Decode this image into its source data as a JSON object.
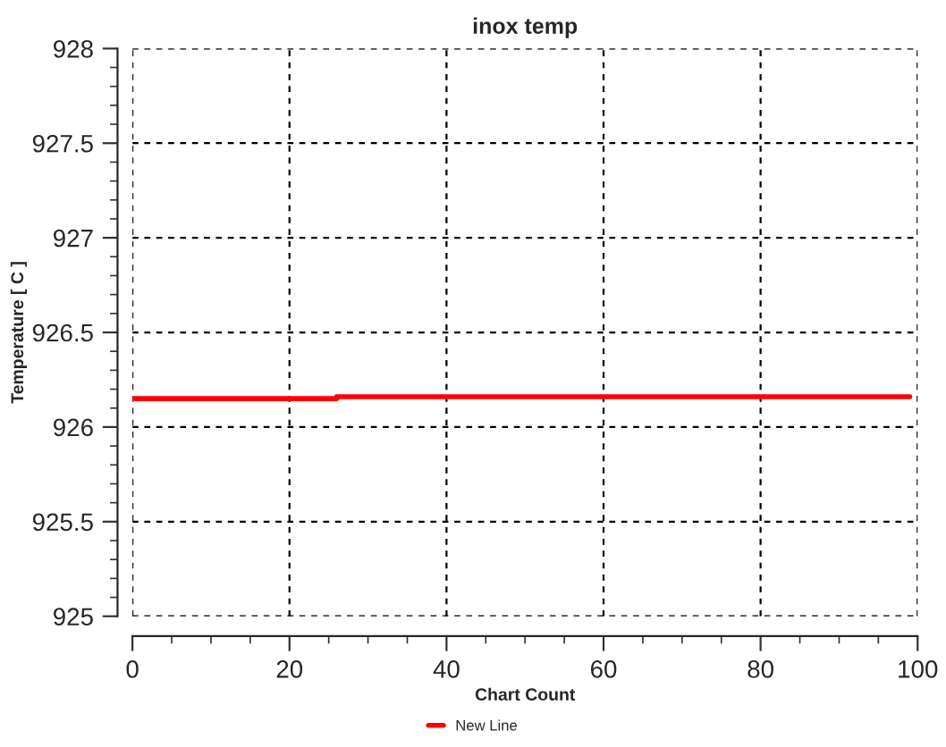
{
  "chart_data": {
    "type": "line",
    "title": "inox temp",
    "xlabel": "Chart Count",
    "ylabel": "Temperature [ C ]",
    "series": [
      {
        "name": "New Line",
        "color": "#ff0000",
        "x": [
          0,
          26,
          26,
          99
        ],
        "values": [
          926.15,
          926.15,
          926.16,
          926.16
        ]
      }
    ],
    "xlim": [
      0,
      100
    ],
    "xticks": [
      0,
      20,
      40,
      60,
      80,
      100
    ],
    "ylim": [
      925,
      928
    ],
    "yticks": [
      925,
      925.5,
      926,
      926.5,
      927,
      927.5,
      928
    ],
    "grid": true,
    "legend": "bottom",
    "marker": "none",
    "line_style": "solid"
  }
}
